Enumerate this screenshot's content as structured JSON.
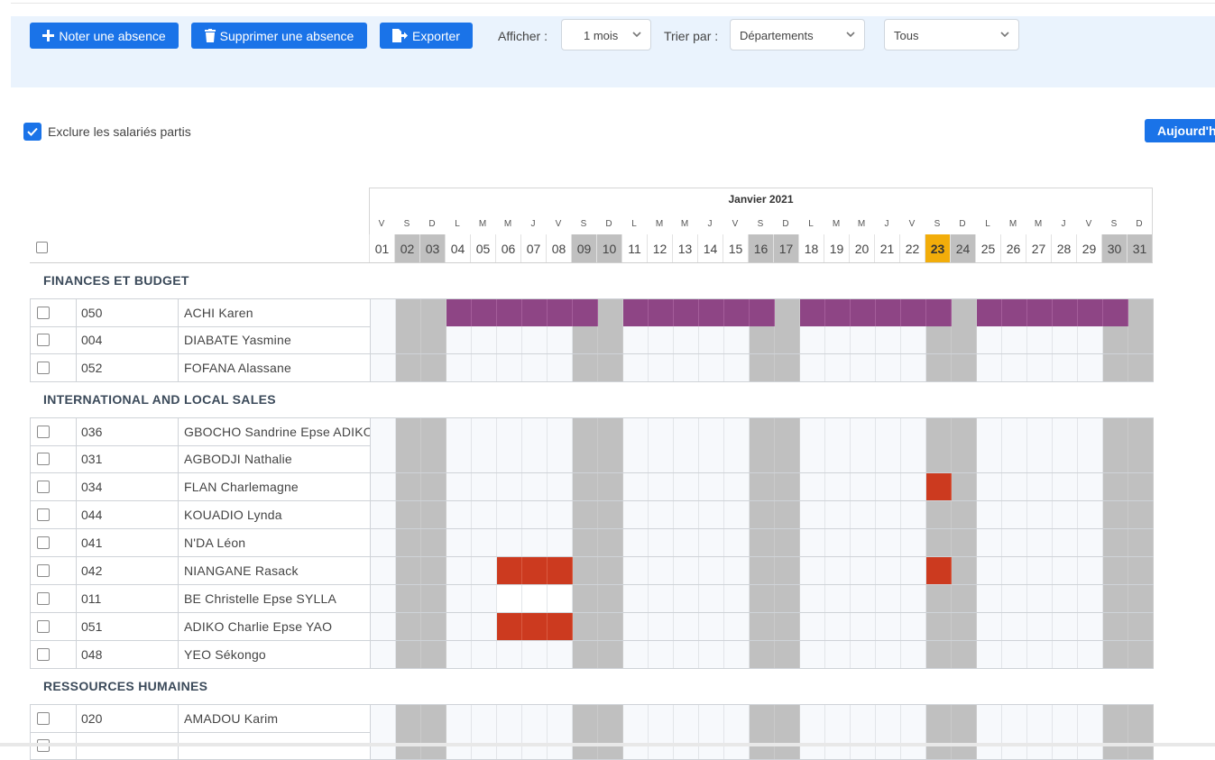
{
  "toolbar": {
    "add_absence": "Noter une absence",
    "delete_absence": "Supprimer une absence",
    "export": "Exporter",
    "show_label": "Afficher :",
    "show_value": "1 mois",
    "sort_label": "Trier par :",
    "sort_value": "Départements",
    "filter_value": "Tous"
  },
  "options": {
    "exclude_left_label": "Exclure les salariés partis",
    "exclude_left_checked": true,
    "today_button": "Aujourd'hui"
  },
  "calendar": {
    "month": "Janvier 2021",
    "today": "23",
    "days": [
      {
        "l": "V",
        "n": "01",
        "we": false
      },
      {
        "l": "S",
        "n": "02",
        "we": true
      },
      {
        "l": "D",
        "n": "03",
        "we": true
      },
      {
        "l": "L",
        "n": "04",
        "we": false
      },
      {
        "l": "M",
        "n": "05",
        "we": false
      },
      {
        "l": "M",
        "n": "06",
        "we": false
      },
      {
        "l": "J",
        "n": "07",
        "we": false
      },
      {
        "l": "V",
        "n": "08",
        "we": false
      },
      {
        "l": "S",
        "n": "09",
        "we": true
      },
      {
        "l": "D",
        "n": "10",
        "we": true
      },
      {
        "l": "L",
        "n": "11",
        "we": false
      },
      {
        "l": "M",
        "n": "12",
        "we": false
      },
      {
        "l": "M",
        "n": "13",
        "we": false
      },
      {
        "l": "J",
        "n": "14",
        "we": false
      },
      {
        "l": "V",
        "n": "15",
        "we": false
      },
      {
        "l": "S",
        "n": "16",
        "we": true
      },
      {
        "l": "D",
        "n": "17",
        "we": true
      },
      {
        "l": "L",
        "n": "18",
        "we": false
      },
      {
        "l": "M",
        "n": "19",
        "we": false
      },
      {
        "l": "M",
        "n": "20",
        "we": false
      },
      {
        "l": "J",
        "n": "21",
        "we": false
      },
      {
        "l": "V",
        "n": "22",
        "we": false
      },
      {
        "l": "S",
        "n": "23",
        "we": true
      },
      {
        "l": "D",
        "n": "24",
        "we": true
      },
      {
        "l": "L",
        "n": "25",
        "we": false
      },
      {
        "l": "M",
        "n": "26",
        "we": false
      },
      {
        "l": "M",
        "n": "27",
        "we": false
      },
      {
        "l": "J",
        "n": "28",
        "we": false
      },
      {
        "l": "V",
        "n": "29",
        "we": false
      },
      {
        "l": "S",
        "n": "30",
        "we": true
      },
      {
        "l": "D",
        "n": "31",
        "we": true
      }
    ]
  },
  "colors": {
    "accent": "#1a73e8",
    "weekend": "#c0c0c0",
    "today": "#f2ad0a",
    "absence_purple": "#8e4585",
    "absence_red": "#cc3a1f"
  },
  "departments": [
    {
      "name": "FINANCES ET BUDGET",
      "employees": [
        {
          "code": "050",
          "name": "ACHI Karen",
          "purple": [
            "04",
            "05",
            "06",
            "07",
            "08",
            "09",
            "11",
            "12",
            "13",
            "14",
            "15",
            "16",
            "18",
            "19",
            "20",
            "21",
            "22",
            "23",
            "25",
            "26",
            "27",
            "28",
            "29",
            "30"
          ]
        },
        {
          "code": "004",
          "name": "DIABATE Yasmine"
        },
        {
          "code": "052",
          "name": "FOFANA Alassane"
        }
      ]
    },
    {
      "name": "INTERNATIONAL AND LOCAL SALES",
      "employees": [
        {
          "code": "036",
          "name": "GBOCHO Sandrine Epse ADIKO"
        },
        {
          "code": "031",
          "name": "AGBODJI Nathalie"
        },
        {
          "code": "034",
          "name": "FLAN Charlemagne",
          "red": [
            "23"
          ]
        },
        {
          "code": "044",
          "name": "KOUADIO Lynda"
        },
        {
          "code": "041",
          "name": "N'DA Léon"
        },
        {
          "code": "042",
          "name": "NIANGANE Rasack",
          "red": [
            "06",
            "07",
            "08",
            "23"
          ]
        },
        {
          "code": "011",
          "name": "BE Christelle Epse SYLLA",
          "blank": [
            "06",
            "07",
            "08"
          ]
        },
        {
          "code": "051",
          "name": "ADIKO Charlie Epse YAO",
          "red": [
            "06",
            "07",
            "08"
          ]
        },
        {
          "code": "048",
          "name": "YEO Sékongo"
        }
      ]
    },
    {
      "name": "RESSOURCES HUMAINES",
      "employees": [
        {
          "code": "020",
          "name": "AMADOU Karim"
        },
        {
          "code": "",
          "name": ""
        }
      ]
    }
  ]
}
